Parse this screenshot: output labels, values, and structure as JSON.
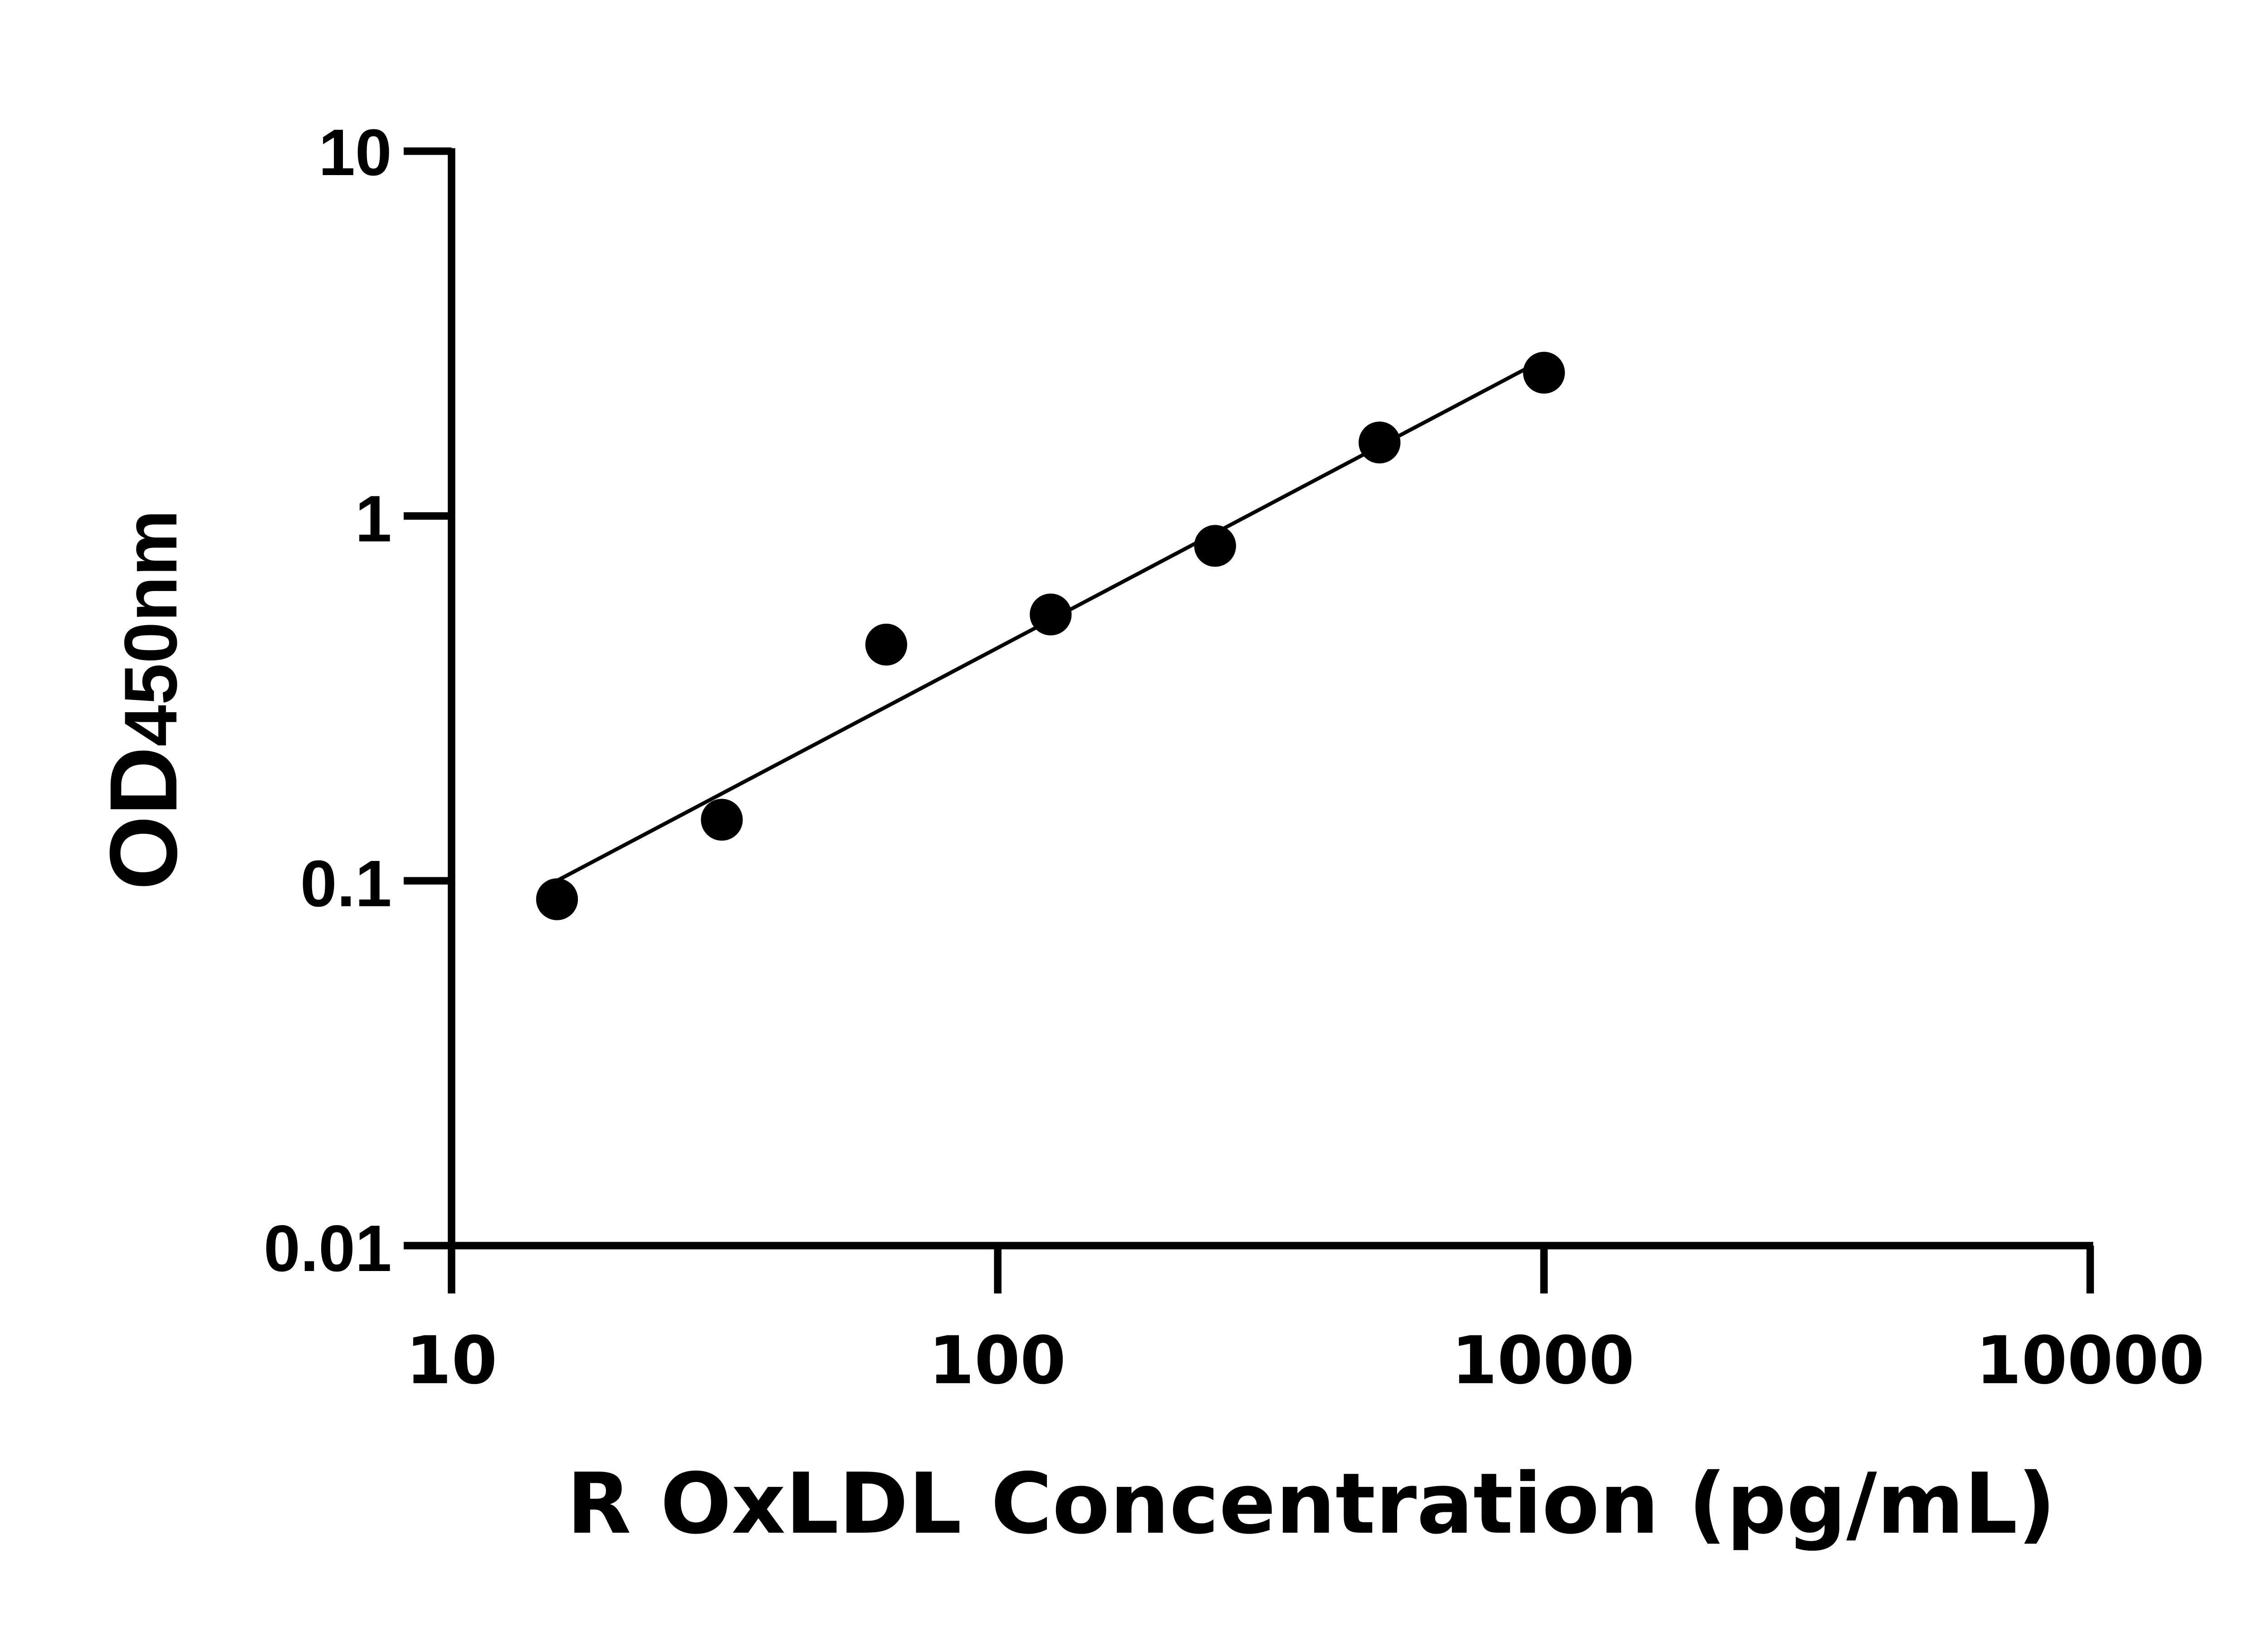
{
  "chart_data": {
    "type": "scatter",
    "title": "",
    "xlabel": "R OxLDL Concentration (pg/mL)",
    "ylabel_main": "OD",
    "ylabel_sub": "450nm",
    "x_scale": "log",
    "y_scale": "log",
    "xlim": [
      10,
      10000
    ],
    "ylim": [
      0.01,
      10
    ],
    "x_ticks": [
      "10",
      "100",
      "1000",
      "10000"
    ],
    "y_ticks": [
      "0.01",
      "0.1",
      "1",
      "10"
    ],
    "grid": false,
    "points": [
      {
        "x": 15.6,
        "y": 0.089
      },
      {
        "x": 31.25,
        "y": 0.147
      },
      {
        "x": 62.5,
        "y": 0.444
      },
      {
        "x": 125,
        "y": 0.537
      },
      {
        "x": 250,
        "y": 0.828
      },
      {
        "x": 500,
        "y": 1.59
      },
      {
        "x": 1000,
        "y": 2.47
      }
    ],
    "fit_line": "log-log linear fit",
    "colors": {
      "marker": "#000000",
      "line": "#000000"
    }
  }
}
